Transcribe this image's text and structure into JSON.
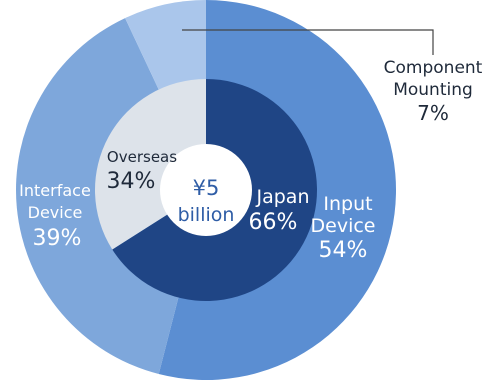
{
  "colors": {
    "outer_input": "#5b8ed2",
    "outer_interface": "#7ea7db",
    "outer_component": "#aac6eb",
    "inner_japan": "#1f4585",
    "inner_overseas": "#dde3ea",
    "center": "#ffffff",
    "label_white": "#ffffff",
    "label_dark": "#1f2a3a",
    "label_center": "#2f5da6",
    "leader_line": "#444444"
  },
  "chart_data": [
    {
      "type": "pie",
      "ring": "outer",
      "categories": [
        "Input Device",
        "Interface Device",
        "Component Mounting"
      ],
      "values": [
        54,
        39,
        7
      ],
      "units": "%",
      "labels": [
        {
          "lines": [
            "Input",
            "Device"
          ],
          "value": "54%"
        },
        {
          "lines": [
            "Interface",
            "Device"
          ],
          "value": "39%"
        },
        {
          "lines": [
            "Component",
            "Mounting"
          ],
          "value": "7%"
        }
      ]
    },
    {
      "type": "pie",
      "ring": "inner",
      "categories": [
        "Japan",
        "Overseas"
      ],
      "values": [
        66,
        34
      ],
      "units": "%",
      "labels": [
        {
          "lines": [
            "Japan"
          ],
          "value": "66%"
        },
        {
          "lines": [
            "Overseas"
          ],
          "value": "34%"
        }
      ]
    }
  ],
  "center": {
    "line1": "¥5",
    "line2": "billion"
  }
}
